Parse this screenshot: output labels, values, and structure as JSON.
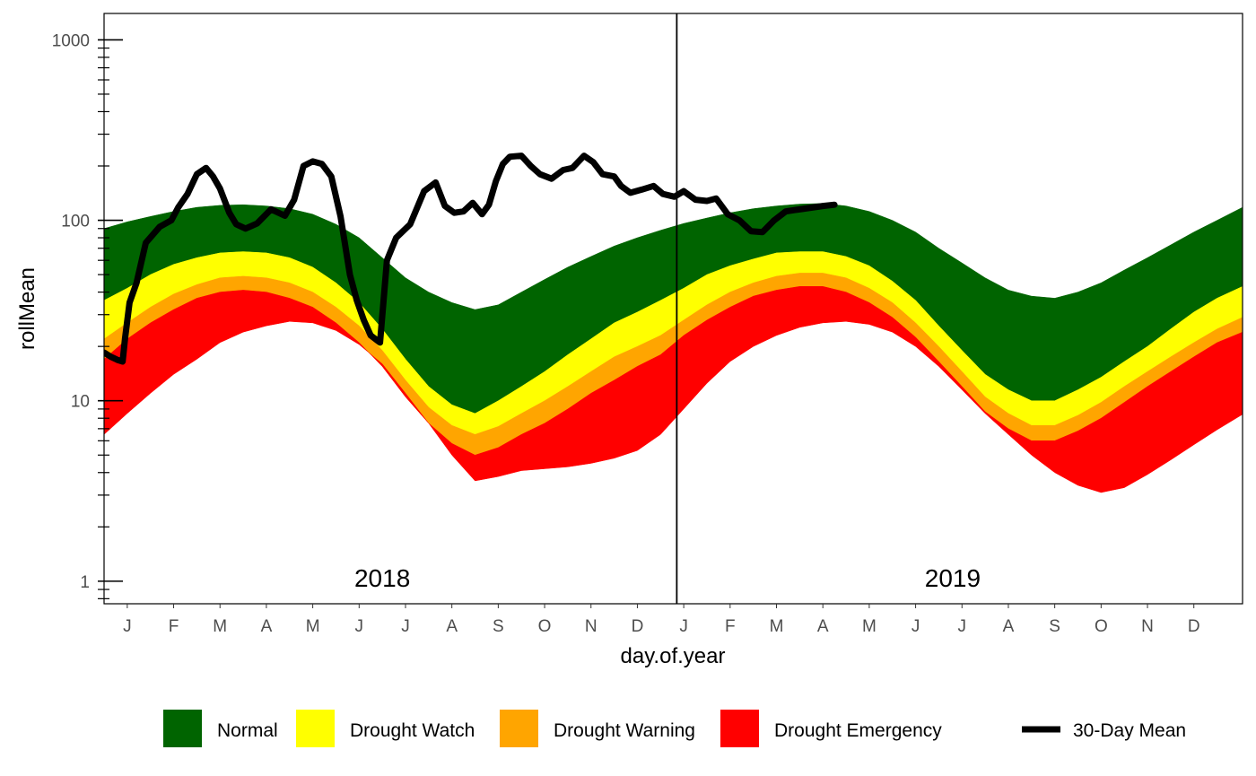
{
  "chart_data": {
    "type": "area",
    "xlabel": "day.of.year",
    "ylabel": "rollMean",
    "yscale": "log",
    "ylim": [
      0.75,
      1400
    ],
    "y_ticks": [
      {
        "value": 1,
        "label": "1"
      },
      {
        "value": 10,
        "label": "10"
      },
      {
        "value": 100,
        "label": "100"
      },
      {
        "value": 1000,
        "label": "1000"
      }
    ],
    "xlim": [
      0,
      24.55
    ],
    "x_ticks": [
      "J",
      "F",
      "M",
      "A",
      "M",
      "J",
      "J",
      "A",
      "S",
      "O",
      "N",
      "D",
      "J",
      "F",
      "M",
      "A",
      "M",
      "J",
      "J",
      "A",
      "S",
      "O",
      "N",
      "D"
    ],
    "year_divider": 12.35,
    "year_labels": [
      {
        "label": "2018",
        "x": 6.0
      },
      {
        "label": "2019",
        "x": 18.3
      }
    ],
    "x_unit": "months since start of 2018 (0 = Jan 1, 2018)",
    "bands": {
      "x": [
        0,
        0.5,
        1,
        1.5,
        2,
        2.5,
        3,
        3.5,
        4,
        4.5,
        5,
        5.5,
        6,
        6.5,
        7,
        7.5,
        8,
        8.5,
        9,
        9.5,
        10,
        10.5,
        11,
        11.5,
        12,
        12.5,
        13,
        13.5,
        14,
        14.5,
        15,
        15.5,
        16,
        16.5,
        17,
        17.5,
        18,
        18.5,
        19,
        19.5,
        20,
        20.5,
        21,
        21.5,
        22,
        22.5,
        23,
        23.5,
        24,
        24.55
      ],
      "normal_upper": [
        90,
        98,
        105,
        112,
        118,
        121,
        122,
        120,
        116,
        108,
        95,
        80,
        62,
        48,
        40,
        35,
        32,
        34,
        40,
        47,
        55,
        63,
        72,
        80,
        88,
        96,
        103,
        110,
        116,
        120,
        123,
        124,
        120,
        112,
        100,
        86,
        70,
        58,
        48,
        41,
        38,
        37,
        40,
        45,
        53,
        62,
        73,
        86,
        100,
        118
      ],
      "watch_upper": [
        36,
        42,
        50,
        57,
        62,
        66,
        67,
        66,
        62,
        55,
        45,
        35,
        25,
        17,
        12,
        9.5,
        8.5,
        10,
        12,
        14.5,
        18,
        22,
        27,
        31,
        36,
        42,
        50,
        56,
        61,
        66,
        67,
        67,
        63,
        56,
        46,
        36,
        26,
        19,
        14,
        11.5,
        10,
        10,
        11.5,
        13.5,
        16.5,
        20,
        25,
        31,
        37,
        43
      ],
      "warning_upper": [
        22,
        27,
        33,
        39,
        44,
        48,
        49,
        48,
        45,
        40,
        33,
        26,
        19,
        13,
        9.2,
        7.3,
        6.5,
        7.2,
        8.5,
        10,
        12,
        14.5,
        17.5,
        20,
        23,
        28,
        34,
        40,
        45,
        49,
        51,
        51,
        48,
        42,
        35,
        27,
        20,
        14.5,
        10.5,
        8.5,
        7.3,
        7.3,
        8.3,
        9.8,
        12,
        14.5,
        17.5,
        21,
        25,
        29
      ],
      "emergency_upper": [
        17,
        22,
        27,
        32,
        37,
        40,
        41,
        40,
        37,
        33,
        27,
        21,
        15.5,
        10.5,
        7.5,
        5.8,
        5.0,
        5.5,
        6.5,
        7.5,
        9,
        11,
        13,
        15.5,
        18,
        23,
        28,
        33,
        38,
        41,
        43,
        43,
        40,
        35,
        29,
        22.5,
        16.5,
        12,
        8.7,
        7,
        6,
        6,
        6.8,
        8,
        9.8,
        12,
        14.5,
        17.5,
        21,
        24
      ],
      "emergency_lower": [
        6.5,
        8.5,
        11,
        14,
        17,
        21,
        24,
        26,
        27.5,
        27,
        24.5,
        20.5,
        16,
        11,
        7.5,
        5,
        3.6,
        3.8,
        4.1,
        4.2,
        4.3,
        4.5,
        4.8,
        5.3,
        6.5,
        9,
        12.5,
        16.5,
        20,
        23,
        25.5,
        27,
        27.5,
        26.5,
        24,
        20,
        15.5,
        11.5,
        8.5,
        6.5,
        5,
        4,
        3.4,
        3.1,
        3.3,
        3.9,
        4.7,
        5.7,
        6.9,
        8.4
      ]
    },
    "series": [
      {
        "name": "30-Day Mean",
        "color": "#000000",
        "x": [
          0,
          0.15,
          0.3,
          0.4,
          0.45,
          0.55,
          0.7,
          0.9,
          1.2,
          1.45,
          1.6,
          1.8,
          2,
          2.2,
          2.35,
          2.5,
          2.7,
          2.85,
          3.05,
          3.3,
          3.6,
          3.9,
          4.1,
          4.3,
          4.5,
          4.7,
          4.9,
          5.1,
          5.3,
          5.45,
          5.6,
          5.75,
          5.95,
          6.1,
          6.3,
          6.6,
          6.9,
          7.15,
          7.35,
          7.55,
          7.75,
          7.95,
          8.15,
          8.3,
          8.45,
          8.6,
          8.75,
          9,
          9.2,
          9.4,
          9.65,
          9.9,
          10.1,
          10.35,
          10.55,
          10.75,
          11,
          11.15,
          11.35,
          11.6,
          11.85,
          12.05,
          12.3,
          12.5,
          12.75,
          13,
          13.2,
          13.45,
          13.7,
          13.95,
          14.2,
          14.45,
          14.7,
          14.9,
          15.1,
          15.3,
          15.5,
          15.75
        ],
        "y": [
          18.5,
          17.5,
          16.8,
          16.5,
          22,
          35,
          45,
          75,
          92,
          100,
          118,
          140,
          180,
          195,
          175,
          150,
          110,
          95,
          90,
          96,
          115,
          106,
          130,
          200,
          212,
          205,
          175,
          105,
          50,
          36,
          28,
          23,
          21,
          60,
          80,
          95,
          145,
          162,
          120,
          110,
          112,
          125,
          108,
          122,
          165,
          205,
          225,
          228,
          200,
          180,
          170,
          190,
          195,
          228,
          210,
          180,
          175,
          155,
          142,
          148,
          155,
          140,
          135,
          145,
          130,
          128,
          132,
          108,
          100,
          87,
          86,
          100,
          112,
          114,
          116,
          118,
          120,
          122
        ]
      }
    ],
    "legend": {
      "position": "bottom",
      "items": [
        {
          "label": "Normal",
          "color": "#006400",
          "kind": "fill"
        },
        {
          "label": "Drought Watch",
          "color": "#ffff00",
          "kind": "fill"
        },
        {
          "label": "Drought Warning",
          "color": "#ffa500",
          "kind": "fill"
        },
        {
          "label": "Drought Emergency",
          "color": "#ff0000",
          "kind": "fill"
        },
        {
          "label": "30-Day Mean",
          "color": "#000000",
          "kind": "line"
        }
      ]
    },
    "grid": false
  }
}
